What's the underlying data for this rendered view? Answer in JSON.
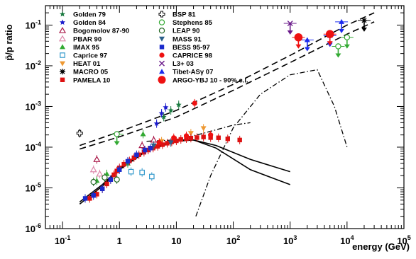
{
  "chart_data": {
    "type": "scatter",
    "xlabel": "energy (GeV)",
    "ylabel": "p̄/p ratio",
    "xscale": "log",
    "yscale": "log",
    "xlim": [
      0.05,
      100000
    ],
    "ylim": [
      1e-06,
      0.3
    ],
    "x_tick_labels": [
      {
        "main": "10",
        "exp": "-1"
      },
      {
        "main": "1",
        "exp": ""
      },
      {
        "main": "10",
        "exp": ""
      },
      {
        "main": "10",
        "exp": "2"
      },
      {
        "main": "10",
        "exp": "3"
      },
      {
        "main": "10",
        "exp": "4"
      },
      {
        "main": "10",
        "exp": "5"
      }
    ],
    "y_tick_labels": [
      {
        "main": "10",
        "exp": "-6"
      },
      {
        "main": "10",
        "exp": "-5"
      },
      {
        "main": "10",
        "exp": "-4"
      },
      {
        "main": "10",
        "exp": "-3"
      },
      {
        "main": "10",
        "exp": "-2"
      },
      {
        "main": "10",
        "exp": "-1"
      }
    ],
    "legend_position": "top",
    "series": [
      {
        "name": "Golden 79",
        "marker": "star",
        "color": "#1a7a40",
        "points": [
          [
            6.0,
            0.00055
          ],
          [
            8.0,
            0.0008
          ],
          [
            11.0,
            0.0011
          ]
        ]
      },
      {
        "name": "Golden 84",
        "marker": "star",
        "color": "#1a1acc",
        "points": [
          [
            4.5,
            0.00038
          ],
          [
            5.5,
            0.00068
          ],
          [
            6.5,
            0.00095
          ]
        ]
      },
      {
        "name": "Bogomolov 87-90",
        "marker": "triangle-open",
        "color": "#aa1a4a",
        "points": [
          [
            0.4,
            5e-05
          ],
          [
            2.5,
            0.00011
          ],
          [
            4.0,
            0.00015
          ]
        ]
      },
      {
        "name": "PBAR 90",
        "marker": "triangle-open",
        "color": "#dd88aa",
        "points": [
          [
            0.35,
            2.8e-05
          ],
          [
            0.45,
            2.2e-05
          ]
        ]
      },
      {
        "name": "IMAX 95",
        "marker": "triangle",
        "color": "#33aa33",
        "points": [
          [
            0.4,
            1.5e-05
          ],
          [
            0.6,
            2.2e-05
          ],
          [
            1.4,
            4e-05
          ],
          [
            2.6,
            0.00021
          ]
        ]
      },
      {
        "name": "Caprice 97",
        "marker": "square-open",
        "color": "#3399cc",
        "points": [
          [
            1.6,
            2.5e-05
          ],
          [
            2.5,
            2.4e-05
          ],
          [
            3.7,
            1.9e-05
          ]
        ]
      },
      {
        "name": "HEAT 01",
        "marker": "triangle-down",
        "color": "#ee9933",
        "points": [
          [
            5.5,
            0.00014
          ],
          [
            18.0,
            0.00022
          ],
          [
            30.0,
            0.00029
          ]
        ]
      },
      {
        "name": "MACRO 05",
        "marker": "asterisk",
        "color": "#000000",
        "upper_limits": [
          [
            20000,
            0.13
          ]
        ]
      },
      {
        "name": "PAMELA 10",
        "marker": "square",
        "color": "#dd1111",
        "points": [
          [
            0.3,
            5.5e-06
          ],
          [
            0.4,
            7e-06
          ],
          [
            0.5,
            9.5e-06
          ],
          [
            0.6,
            1.25e-05
          ],
          [
            0.7,
            1.6e-05
          ],
          [
            0.8,
            2.1e-05
          ],
          [
            0.9,
            2.6e-05
          ],
          [
            1.0,
            3.1e-05
          ],
          [
            1.2,
            3.8e-05
          ],
          [
            1.5,
            4.6e-05
          ],
          [
            1.8,
            5.5e-05
          ],
          [
            2.2,
            6.5e-05
          ],
          [
            2.7,
            7.5e-05
          ],
          [
            3.2,
            8.5e-05
          ],
          [
            3.9,
            9.5e-05
          ],
          [
            4.7,
            0.000105
          ],
          [
            5.7,
            0.000115
          ],
          [
            6.9,
            0.000125
          ],
          [
            8.3,
            0.000135
          ],
          [
            10.0,
            0.000143
          ],
          [
            12.0,
            0.000155
          ],
          [
            15.0,
            0.000162
          ],
          [
            18.0,
            0.000167
          ],
          [
            23.0,
            0.000172
          ],
          [
            30.0,
            0.000178
          ],
          [
            40.0,
            0.000172
          ],
          [
            55.0,
            0.00017
          ],
          [
            80.0,
            0.00016
          ],
          [
            130.0,
            0.00015
          ]
        ]
      },
      {
        "name": "BSP 81",
        "marker": "cross-open",
        "color": "#000000",
        "points": [
          [
            0.2,
            0.00022
          ]
        ]
      },
      {
        "name": "Stephens 85",
        "marker": "circle-open",
        "color": "#33aa33",
        "upper_limits": [
          [
            0.9,
            0.00021
          ],
          [
            7000,
            0.03
          ],
          [
            10000,
            0.05
          ]
        ]
      },
      {
        "name": "LEAP 90",
        "marker": "circle-open",
        "color": "#226622",
        "points": [
          [
            0.35,
            1.4e-05
          ],
          [
            0.55,
            1.8e-05
          ],
          [
            0.9,
            1.6e-05
          ]
        ]
      },
      {
        "name": "MASS 91",
        "marker": "triangle-down",
        "color": "#2a5f8a",
        "points": [
          [
            4.0,
            0.00011
          ],
          [
            8.0,
            0.00013
          ]
        ]
      },
      {
        "name": "BESS 95-97",
        "marker": "square",
        "color": "#1a2acc",
        "points": [
          [
            0.25,
            5.5e-06
          ],
          [
            0.35,
            6.5e-06
          ],
          [
            0.5,
            9.5e-06
          ],
          [
            0.7,
            1.6e-05
          ],
          [
            1.0,
            2.8e-05
          ],
          [
            1.4,
            4.5e-05
          ],
          [
            2.0,
            6.5e-05
          ],
          [
            2.8,
            8.5e-05
          ],
          [
            3.5,
            9.5e-05
          ]
        ]
      },
      {
        "name": "CAPRICE 98",
        "marker": "circle",
        "color": "#ee1111",
        "points": [
          [
            5.0,
            0.00013
          ],
          [
            9.0,
            0.00017
          ],
          [
            15.0,
            0.00019
          ],
          [
            21.0,
            0.0012
          ],
          [
            40.0,
            0.0002
          ]
        ]
      },
      {
        "name": "L3+ 03",
        "marker": "x",
        "color": "#6a1a8a",
        "upper_limits": [
          [
            1000,
            0.11
          ]
        ]
      },
      {
        "name": "Tibet-ASγ 07",
        "marker": "triangle",
        "color": "#1a2aee",
        "upper_limits": [
          [
            2000,
            0.043
          ],
          [
            5000,
            0.055
          ],
          [
            8000,
            0.12
          ]
        ]
      },
      {
        "name": "ARGO-YBJ 10 - 90% c.l.",
        "marker": "circle-big",
        "color": "#ee1111",
        "upper_limits": [
          [
            1400,
            0.05
          ],
          [
            5000,
            0.06
          ]
        ]
      }
    ],
    "model_curves": [
      {
        "style": "dashed",
        "points": [
          [
            0.2,
            0.00011
          ],
          [
            1.0,
            0.00024
          ],
          [
            10.0,
            0.0008
          ],
          [
            100.0,
            0.0035
          ],
          [
            1000.0,
            0.018
          ],
          [
            10000.0,
            0.1
          ],
          [
            30000.0,
            0.2
          ]
        ]
      },
      {
        "style": "dashed",
        "points": [
          [
            0.2,
            9e-05
          ],
          [
            1.0,
            0.00018
          ],
          [
            10.0,
            0.00055
          ],
          [
            100.0,
            0.0025
          ],
          [
            1000.0,
            0.012
          ],
          [
            10000.0,
            0.06
          ],
          [
            30000.0,
            0.12
          ]
        ]
      },
      {
        "style": "solid",
        "points": [
          [
            0.2,
            4e-06
          ],
          [
            0.5,
            1.1e-05
          ],
          [
            1.0,
            2.8e-05
          ],
          [
            3.0,
            8e-05
          ],
          [
            10.0,
            0.00014
          ],
          [
            20.0,
            0.00015
          ],
          [
            50.0,
            0.00011
          ],
          [
            200.0,
            5e-05
          ],
          [
            1000.0,
            2.5e-05
          ]
        ]
      },
      {
        "style": "solid",
        "points": [
          [
            0.2,
            4.5e-06
          ],
          [
            0.5,
            1.2e-05
          ],
          [
            1.0,
            3e-05
          ],
          [
            3.0,
            8.5e-05
          ],
          [
            10.0,
            0.00015
          ],
          [
            20.0,
            0.00015
          ],
          [
            50.0,
            9.5e-05
          ],
          [
            200.0,
            2.8e-05
          ],
          [
            1000.0,
            1.2e-05
          ]
        ]
      },
      {
        "style": "dash-dot",
        "points": [
          [
            22.0,
            2e-06
          ],
          [
            40.0,
            2e-05
          ],
          [
            100.0,
            0.0003
          ],
          [
            300.0,
            0.002
          ],
          [
            1000.0,
            0.006
          ],
          [
            3000.0,
            0.008
          ],
          [
            6000.0,
            0.001
          ],
          [
            10000.0,
            0.0001
          ]
        ]
      },
      {
        "style": "dash-dot",
        "points": [
          [
            3.0,
            0.00014
          ],
          [
            10.0,
            0.00015
          ],
          [
            30.0,
            0.00022
          ],
          [
            100.0,
            0.00035
          ],
          [
            200.0,
            0.0004
          ]
        ]
      }
    ]
  }
}
